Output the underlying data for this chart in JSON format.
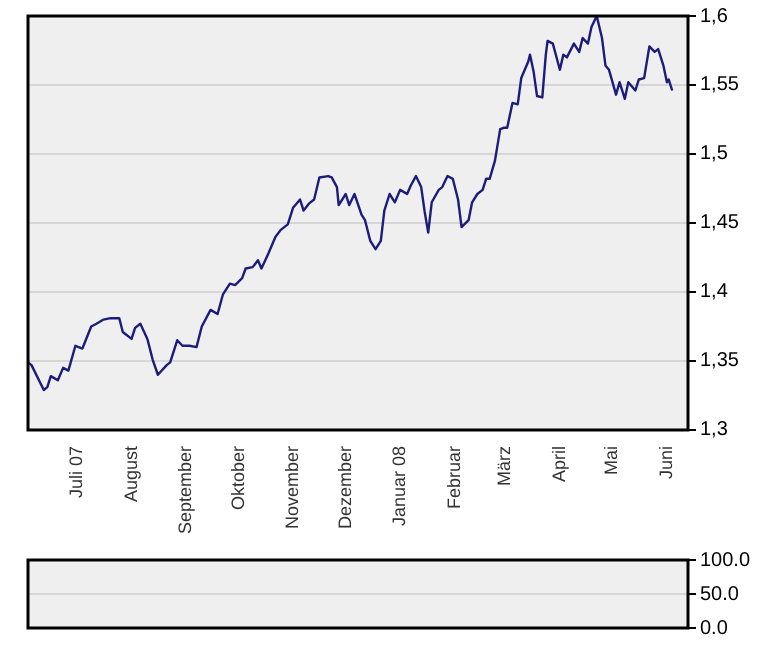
{
  "chart_data": [
    {
      "type": "line",
      "color": "#1c1c7c",
      "grid": "y",
      "xlim": [
        "2007-06-03",
        "2008-06-13"
      ],
      "xticks": [
        {
          "value": "2007-07-01",
          "label": "Juli 07"
        },
        {
          "value": "2007-08-01",
          "label": "August"
        },
        {
          "value": "2007-09-01",
          "label": "September"
        },
        {
          "value": "2007-10-01",
          "label": "Oktober"
        },
        {
          "value": "2007-11-01",
          "label": "November"
        },
        {
          "value": "2007-12-01",
          "label": "Dezember"
        },
        {
          "value": "2008-01-01",
          "label": "Januar 08"
        },
        {
          "value": "2008-02-01",
          "label": "Februar"
        },
        {
          "value": "2008-03-01",
          "label": "März"
        },
        {
          "value": "2008-04-01",
          "label": "April"
        },
        {
          "value": "2008-05-01",
          "label": "Mai"
        },
        {
          "value": "2008-06-01",
          "label": "Juni"
        }
      ],
      "ylim": [
        1.3,
        1.6
      ],
      "yticks": [
        {
          "value": 1.3,
          "label": "1,3"
        },
        {
          "value": 1.35,
          "label": "1,35"
        },
        {
          "value": 1.4,
          "label": "1,4"
        },
        {
          "value": 1.45,
          "label": "1,45"
        },
        {
          "value": 1.5,
          "label": "1,5"
        },
        {
          "value": 1.55,
          "label": "1,55"
        },
        {
          "value": 1.6,
          "label": "1,6"
        }
      ],
      "x": [
        "2007-06-03",
        "2007-06-05",
        "2007-06-12",
        "2007-06-14",
        "2007-06-16",
        "2007-06-20",
        "2007-06-23",
        "2007-06-26",
        "2007-06-30",
        "2007-07-04",
        "2007-07-09",
        "2007-07-12",
        "2007-07-16",
        "2007-07-20",
        "2007-07-25",
        "2007-07-27",
        "2007-08-01",
        "2007-08-03",
        "2007-08-06",
        "2007-08-10",
        "2007-08-13",
        "2007-08-16",
        "2007-08-21",
        "2007-08-23",
        "2007-08-27",
        "2007-08-30",
        "2007-09-03",
        "2007-09-07",
        "2007-09-10",
        "2007-09-15",
        "2007-09-19",
        "2007-09-22",
        "2007-09-26",
        "2007-09-29",
        "2007-10-03",
        "2007-10-05",
        "2007-10-09",
        "2007-10-12",
        "2007-10-14",
        "2007-10-18",
        "2007-10-22",
        "2007-10-25",
        "2007-10-29",
        "2007-11-01",
        "2007-11-05",
        "2007-11-07",
        "2007-11-10",
        "2007-11-13",
        "2007-11-16",
        "2007-11-21",
        "2007-11-23",
        "2007-11-26",
        "2007-11-27",
        "2007-12-01",
        "2007-12-03",
        "2007-12-06",
        "2007-12-10",
        "2007-12-12",
        "2007-12-15",
        "2007-12-18",
        "2007-12-21",
        "2007-12-23",
        "2007-12-26",
        "2007-12-29",
        "2008-01-01",
        "2008-01-05",
        "2008-01-07",
        "2008-01-10",
        "2008-01-13",
        "2008-01-15",
        "2008-01-17",
        "2008-01-19",
        "2008-01-23",
        "2008-01-25",
        "2008-01-28",
        "2008-01-31",
        "2008-02-03",
        "2008-02-05",
        "2008-02-09",
        "2008-02-11",
        "2008-02-14",
        "2008-02-17",
        "2008-02-19",
        "2008-02-21",
        "2008-02-24",
        "2008-02-27",
        "2008-02-29",
        "2008-03-02",
        "2008-03-05",
        "2008-03-08",
        "2008-03-10",
        "2008-03-14",
        "2008-03-15",
        "2008-03-17",
        "2008-03-19",
        "2008-03-22",
        "2008-03-24",
        "2008-03-25",
        "2008-03-28",
        "2008-04-01",
        "2008-04-03",
        "2008-04-05",
        "2008-04-09",
        "2008-04-12",
        "2008-04-14",
        "2008-04-17",
        "2008-04-19",
        "2008-04-22",
        "2008-04-25",
        "2008-04-27",
        "2008-04-29",
        "2008-05-03",
        "2008-05-05",
        "2008-05-08",
        "2008-05-10",
        "2008-05-14",
        "2008-05-16",
        "2008-05-19",
        "2008-05-22",
        "2008-05-25",
        "2008-05-27",
        "2008-05-30",
        "2008-06-01",
        "2008-06-02",
        "2008-06-04"
      ],
      "values": [
        1.349,
        1.347,
        1.329,
        1.331,
        1.339,
        1.336,
        1.345,
        1.343,
        1.361,
        1.359,
        1.375,
        1.377,
        1.38,
        1.381,
        1.381,
        1.371,
        1.366,
        1.374,
        1.377,
        1.366,
        1.351,
        1.34,
        1.347,
        1.349,
        1.365,
        1.361,
        1.361,
        1.36,
        1.375,
        1.387,
        1.384,
        1.398,
        1.406,
        1.405,
        1.41,
        1.417,
        1.418,
        1.423,
        1.417,
        1.428,
        1.44,
        1.445,
        1.449,
        1.461,
        1.467,
        1.459,
        1.464,
        1.467,
        1.483,
        1.484,
        1.483,
        1.476,
        1.463,
        1.471,
        1.463,
        1.471,
        1.456,
        1.452,
        1.437,
        1.431,
        1.437,
        1.459,
        1.471,
        1.465,
        1.474,
        1.471,
        1.477,
        1.484,
        1.476,
        1.458,
        1.443,
        1.465,
        1.474,
        1.476,
        1.484,
        1.482,
        1.467,
        1.447,
        1.452,
        1.465,
        1.471,
        1.474,
        1.482,
        1.482,
        1.495,
        1.518,
        1.519,
        1.519,
        1.537,
        1.536,
        1.555,
        1.567,
        1.572,
        1.56,
        1.542,
        1.541,
        1.572,
        1.582,
        1.58,
        1.561,
        1.572,
        1.57,
        1.58,
        1.574,
        1.584,
        1.58,
        1.592,
        1.6,
        1.584,
        1.564,
        1.561,
        1.543,
        1.552,
        1.54,
        1.552,
        1.546,
        1.554,
        1.555,
        1.578,
        1.574,
        1.576,
        1.564,
        1.552,
        1.554,
        1.546
      ]
    },
    {
      "type": "line",
      "grid": "y",
      "tick_labels": "y",
      "xlim": [
        "2007-06-03",
        "2008-06-13"
      ],
      "ylim": [
        0,
        100
      ],
      "yticks": [
        {
          "value": 0,
          "label": "0.0"
        },
        {
          "value": 50,
          "label": "50.0"
        },
        {
          "value": 100,
          "label": "100.0"
        }
      ]
    }
  ]
}
